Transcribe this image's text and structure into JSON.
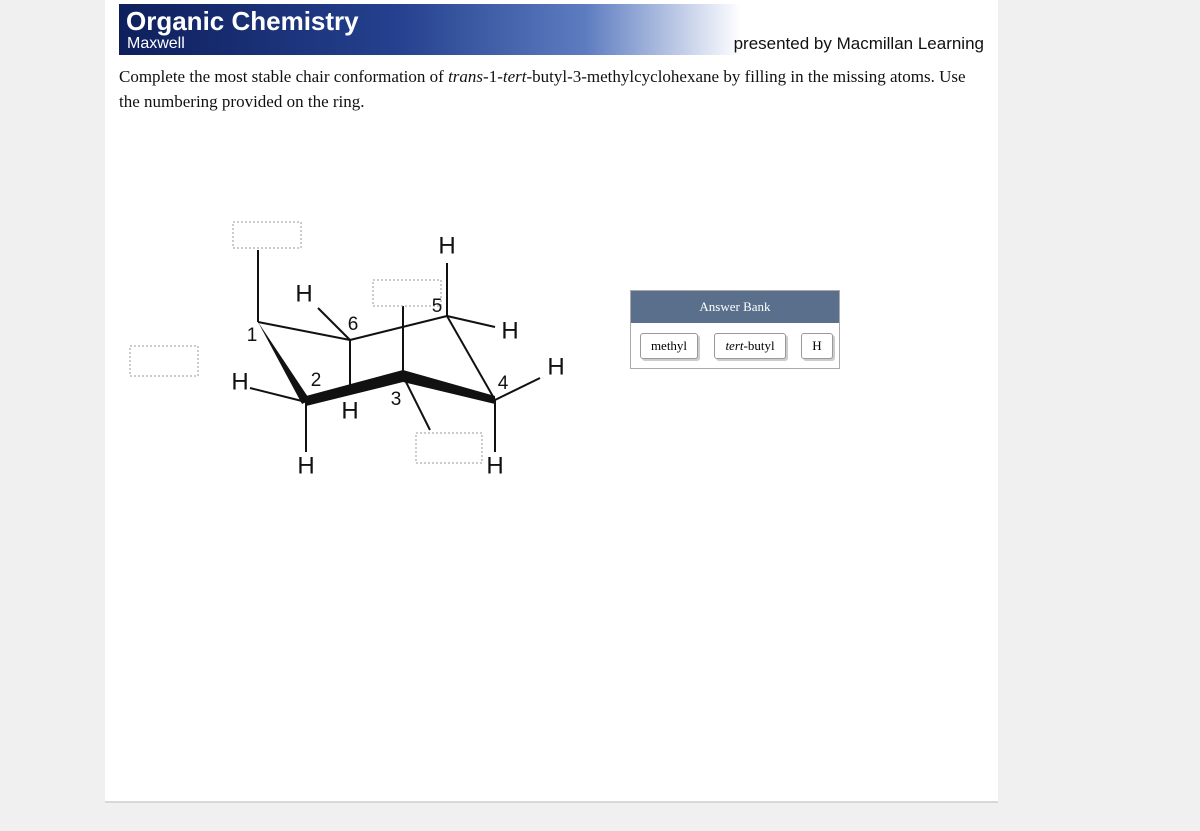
{
  "header": {
    "title": "Organic Chemistry",
    "author": "Maxwell",
    "publisher": "presented by Macmillan Learning"
  },
  "question": {
    "parts": [
      {
        "text": "Complete the most stable chair conformation of ",
        "italic": false
      },
      {
        "text": "trans",
        "italic": true
      },
      {
        "text": "-1-",
        "italic": false
      },
      {
        "text": "tert",
        "italic": true
      },
      {
        "text": "-butyl-3-methylcyclohexane by filling in the missing atoms. Use the numbering provided on the ring.",
        "italic": false
      }
    ]
  },
  "diagram": {
    "ring_numbers": [
      "1",
      "2",
      "3",
      "4",
      "5",
      "6"
    ],
    "atoms": [
      "H",
      "H",
      "H",
      "H",
      "H",
      "H",
      "H",
      "H"
    ]
  },
  "answer_bank": {
    "title": "Answer Bank",
    "items": [
      [
        {
          "text": "methyl",
          "italic": false
        }
      ],
      [
        {
          "text": "tert",
          "italic": true
        },
        {
          "text": "-butyl",
          "italic": false
        }
      ],
      [
        {
          "text": "H",
          "italic": false
        }
      ]
    ]
  }
}
